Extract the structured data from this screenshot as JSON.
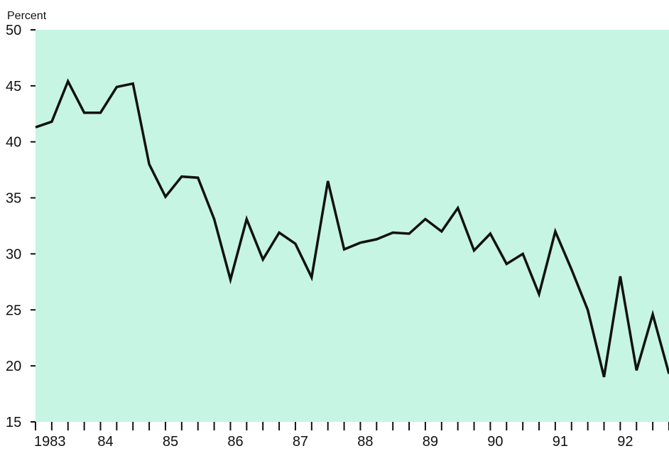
{
  "chart_data": {
    "type": "line",
    "title": "",
    "ylabel": "Percent",
    "xlabel": "",
    "ylim": [
      15,
      50
    ],
    "xlim": [
      1983.0,
      1992.75
    ],
    "yticks": [
      "15",
      "20",
      "25",
      "30",
      "35",
      "40",
      "45",
      "50"
    ],
    "yticks_values": [
      15,
      20,
      25,
      30,
      35,
      40,
      45,
      50
    ],
    "xtick_labels": [
      "1983",
      "84",
      "85",
      "86",
      "87",
      "88",
      "89",
      "90",
      "91",
      "92"
    ],
    "xtick_values": [
      1983,
      1984,
      1985,
      1986,
      1987,
      1988,
      1989,
      1990,
      1991,
      1992
    ],
    "grid": false,
    "colors": {
      "plot_background": "#c6f5e4",
      "line": "#111111"
    },
    "series": [
      {
        "x": [
          1983.0,
          1983.25,
          1983.5,
          1983.75,
          1984.0,
          1984.25,
          1984.5,
          1984.75,
          1985.0,
          1985.25,
          1985.5,
          1985.75,
          1986.0,
          1986.25,
          1986.5,
          1986.75,
          1987.0,
          1987.25,
          1987.5,
          1987.75,
          1988.0,
          1988.25,
          1988.5,
          1988.75,
          1989.0,
          1989.25,
          1989.5,
          1989.75,
          1990.0,
          1990.25,
          1990.5,
          1990.75,
          1991.0,
          1991.25,
          1991.5,
          1991.75,
          1992.0,
          1992.25,
          1992.5,
          1992.75
        ],
        "values": [
          41.3,
          41.8,
          45.4,
          42.6,
          42.6,
          44.9,
          45.2,
          38.0,
          35.1,
          36.9,
          36.8,
          33.1,
          27.7,
          33.1,
          29.5,
          31.9,
          30.9,
          27.9,
          36.5,
          30.4,
          31.0,
          31.3,
          31.9,
          31.8,
          33.1,
          32.0,
          34.1,
          30.3,
          31.8,
          29.1,
          30.0,
          26.4,
          32.0,
          28.6,
          25.0,
          19.0,
          28.0,
          19.6,
          24.6,
          19.3
        ]
      }
    ]
  }
}
